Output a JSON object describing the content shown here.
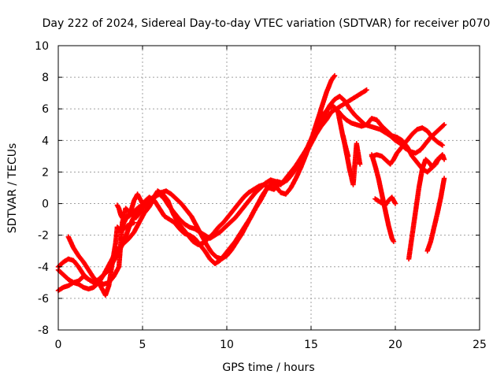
{
  "chart_data": {
    "type": "scatter",
    "title": "Day 222 of 2024, Sidereal Day-to-day VTEC variation (SDTVAR) for receiver p070",
    "xlabel": "GPS time / hours",
    "ylabel": "SDTVAR / TECUs",
    "xlim": [
      0,
      25
    ],
    "ylim": [
      -8,
      10
    ],
    "xticks": [
      0,
      5,
      10,
      15,
      20,
      25
    ],
    "yticks": [
      -8,
      -6,
      -4,
      -2,
      0,
      2,
      4,
      6,
      8,
      10
    ],
    "grid": true,
    "legend": "none",
    "marker": "plus",
    "color": "#ff0000",
    "series": [
      {
        "x": [
          0.0,
          0.3,
          0.6,
          0.9,
          1.2,
          1.5,
          1.8,
          2.1,
          2.4,
          2.6,
          2.8,
          3.0,
          3.2,
          3.4,
          3.5,
          3.7,
          3.9,
          4.1,
          4.3,
          4.5,
          4.7,
          5.0,
          5.3,
          5.6,
          5.9,
          6.2,
          6.5,
          6.8,
          7.1,
          7.4,
          7.7,
          8.0,
          8.3,
          8.6,
          8.9,
          9.2,
          9.5,
          9.8,
          10.1,
          10.4,
          10.7,
          11.0,
          11.3,
          11.6,
          11.9,
          12.2,
          12.5,
          12.8,
          13.1,
          13.4,
          13.7,
          14.0,
          14.3,
          14.6,
          14.9,
          15.2,
          15.5,
          15.8,
          16.1,
          16.4,
          16.7,
          17.0,
          17.3,
          17.6,
          17.9,
          18.2,
          18.5,
          18.8,
          19.1,
          19.4,
          19.7,
          20.0,
          20.3,
          20.6,
          20.9,
          21.2,
          21.5,
          21.8,
          22.1,
          22.4,
          22.7,
          22.9
        ],
        "y": [
          -5.5,
          -5.3,
          -5.2,
          -5.0,
          -4.9,
          -4.6,
          -4.8,
          -5.0,
          -5.0,
          -5.4,
          -5.8,
          -5.2,
          -3.8,
          -2.5,
          -1.5,
          -1.7,
          -1.2,
          -0.8,
          -0.5,
          0.2,
          0.6,
          0.0,
          -0.3,
          0.3,
          0.8,
          0.6,
          0.2,
          -0.6,
          -1.2,
          -1.6,
          -2.0,
          -2.4,
          -2.6,
          -2.5,
          -2.2,
          -1.9,
          -1.5,
          -1.2,
          -0.8,
          -0.4,
          0.0,
          0.4,
          0.7,
          0.9,
          1.1,
          1.2,
          1.0,
          0.9,
          1.2,
          1.4,
          1.7,
          2.1,
          2.5,
          3.0,
          3.6,
          4.2,
          4.9,
          5.6,
          6.2,
          6.6,
          6.8,
          6.5,
          6.0,
          5.6,
          5.3,
          5.0,
          4.9,
          4.8,
          4.7,
          4.5,
          4.3,
          4.0,
          3.8,
          3.5,
          3.3,
          3.2,
          3.4,
          3.8,
          4.2,
          4.5,
          4.8,
          5.0
        ]
      },
      {
        "x": [
          0.0,
          0.3,
          0.6,
          0.9,
          1.2,
          1.5,
          1.8,
          2.1,
          2.4,
          2.7,
          3.0,
          3.3,
          3.6,
          3.9,
          4.2,
          4.5,
          4.8,
          5.1,
          5.4,
          5.7,
          6.0,
          6.3,
          6.6,
          6.9,
          7.2,
          7.5,
          7.8,
          8.1,
          8.4,
          8.7,
          9.0,
          9.3,
          9.6,
          9.9,
          10.2,
          10.5,
          10.8,
          11.1,
          11.4,
          11.7,
          12.0,
          12.3,
          12.6,
          12.9,
          13.2,
          13.5,
          13.8,
          14.1,
          14.4,
          14.7,
          15.0,
          15.3,
          15.6,
          15.9,
          16.2,
          16.4
        ],
        "y": [
          -4.0,
          -3.7,
          -3.5,
          -3.6,
          -4.0,
          -4.5,
          -4.8,
          -5.0,
          -4.8,
          -4.5,
          -4.2,
          -3.6,
          -3.0,
          -2.4,
          -1.5,
          -0.8,
          -0.3,
          0.1,
          0.4,
          0.2,
          -0.3,
          -0.8,
          -1.0,
          -1.2,
          -1.6,
          -1.9,
          -2.0,
          -2.2,
          -2.6,
          -3.0,
          -3.5,
          -3.8,
          -3.6,
          -3.2,
          -2.8,
          -2.4,
          -1.9,
          -1.4,
          -0.9,
          -0.3,
          0.2,
          0.8,
          1.2,
          1.1,
          0.7,
          0.6,
          1.0,
          1.6,
          2.3,
          3.1,
          4.0,
          5.0,
          6.0,
          7.0,
          7.8,
          8.1
        ]
      },
      {
        "x": [
          0.0,
          0.3,
          0.6,
          0.9,
          1.2,
          1.5,
          1.8,
          2.1,
          2.4,
          2.7,
          3.0,
          3.3,
          3.6,
          3.9,
          4.2,
          4.5,
          4.8,
          5.1,
          5.4,
          5.7,
          6.0,
          6.3,
          6.6,
          6.9,
          7.2,
          7.5,
          7.8,
          8.1,
          8.4,
          8.7,
          9.0,
          9.3,
          9.6,
          9.9,
          10.2,
          10.5,
          10.8,
          11.1,
          11.4,
          11.7,
          12.0,
          12.3,
          12.6,
          12.9,
          13.2,
          13.5,
          13.8,
          14.1,
          14.4,
          14.7,
          15.0,
          15.3,
          15.6,
          15.9,
          16.2,
          16.5,
          16.8,
          17.1,
          17.4,
          17.7,
          18.0,
          18.3
        ],
        "y": [
          -4.2,
          -4.5,
          -4.8,
          -5.0,
          -5.1,
          -5.3,
          -5.4,
          -5.3,
          -5.0,
          -4.5,
          -3.9,
          -3.3,
          -2.8,
          -2.5,
          -2.2,
          -1.8,
          -1.2,
          -0.6,
          -0.2,
          0.4,
          0.6,
          0.3,
          -0.2,
          -0.6,
          -1.0,
          -1.3,
          -1.5,
          -1.6,
          -1.8,
          -2.0,
          -2.2,
          -2.0,
          -1.8,
          -1.5,
          -1.2,
          -0.9,
          -0.5,
          -0.1,
          0.3,
          0.7,
          1.0,
          1.3,
          1.5,
          1.4,
          1.2,
          1.6,
          2.0,
          2.4,
          2.9,
          3.4,
          3.9,
          4.4,
          4.9,
          5.3,
          5.8,
          6.0,
          6.2,
          6.4,
          6.6,
          6.8,
          7.0,
          7.2
        ]
      },
      {
        "x": [
          0.6,
          0.9,
          1.2,
          1.5,
          1.8,
          2.1,
          2.4,
          2.7,
          3.0,
          3.3,
          3.6,
          3.8,
          4.0,
          4.3,
          4.6,
          4.9,
          5.2,
          5.5,
          5.8,
          6.1,
          6.4,
          6.7,
          7.0,
          7.3,
          7.6,
          7.9,
          8.2,
          8.5,
          8.8,
          9.1,
          9.4,
          9.7,
          10.0,
          10.3,
          10.6,
          10.9,
          11.2,
          11.5,
          11.8,
          12.1,
          12.4,
          12.7,
          13.0,
          13.3,
          13.6,
          13.9,
          14.2,
          14.5,
          14.8,
          15.1,
          15.4,
          15.7,
          16.0,
          16.3,
          16.6,
          16.9,
          17.2
        ],
        "y": [
          -2.1,
          -2.8,
          -3.3,
          -3.7,
          -4.2,
          -4.7,
          -5.0,
          -5.1,
          -5.0,
          -4.6,
          -4.0,
          -1.2,
          -0.3,
          -0.6,
          -0.9,
          -0.5,
          0.0,
          0.3,
          0.5,
          0.7,
          0.8,
          0.6,
          0.3,
          0.0,
          -0.4,
          -0.8,
          -1.4,
          -2.0,
          -2.6,
          -3.1,
          -3.4,
          -3.5,
          -3.3,
          -2.9,
          -2.4,
          -1.9,
          -1.3,
          -0.7,
          -0.1,
          0.5,
          1.0,
          1.3,
          1.4,
          1.3,
          1.5,
          1.9,
          2.4,
          3.0,
          3.6,
          4.3,
          5.0,
          5.6,
          6.0,
          6.2,
          5.8,
          4.2,
          3.0
        ]
      },
      {
        "x": [
          16.5,
          16.8,
          17.1,
          17.4,
          17.7,
          18.0,
          18.3,
          18.6,
          18.9,
          19.2,
          19.5,
          19.8,
          20.1,
          20.4,
          20.7,
          21.0,
          21.3,
          21.6,
          21.9,
          22.2,
          22.5,
          22.8
        ],
        "y": [
          6.0,
          5.6,
          5.3,
          5.1,
          5.0,
          4.9,
          5.0,
          5.4,
          5.3,
          4.9,
          4.6,
          4.3,
          4.2,
          4.0,
          3.6,
          3.0,
          2.6,
          2.2,
          2.0,
          2.3,
          2.8,
          3.0
        ]
      },
      {
        "x": [
          18.6,
          18.9,
          19.2,
          19.5,
          19.7,
          19.9,
          20.1,
          20.4,
          20.7,
          21.0,
          21.3,
          21.6,
          21.9,
          22.2,
          22.5,
          22.8
        ],
        "y": [
          3.0,
          3.1,
          3.0,
          2.7,
          2.5,
          2.8,
          3.2,
          3.6,
          4.0,
          4.4,
          4.7,
          4.8,
          4.6,
          4.2,
          3.9,
          3.7
        ]
      },
      {
        "x": [
          16.9,
          17.1,
          17.3,
          17.5,
          17.7,
          17.9
        ],
        "y": [
          4.3,
          3.2,
          2.1,
          1.2,
          3.8,
          2.5
        ]
      },
      {
        "x": [
          18.6,
          18.8,
          19.0,
          19.2,
          19.4,
          19.6,
          19.8,
          19.9
        ],
        "y": [
          3.1,
          2.4,
          1.6,
          0.6,
          -0.4,
          -1.4,
          -2.2,
          -2.4
        ]
      },
      {
        "x": [
          18.8,
          19.1,
          19.4,
          19.6,
          19.8,
          20.0
        ],
        "y": [
          0.3,
          0.1,
          -0.1,
          0.2,
          0.4,
          0.0
        ]
      },
      {
        "x": [
          20.8,
          21.0,
          21.2,
          21.4,
          21.6,
          21.8,
          22.0,
          22.2,
          22.4,
          22.6,
          22.8,
          22.9
        ],
        "y": [
          -3.5,
          -2.0,
          -0.5,
          1.0,
          2.2,
          2.8,
          2.6,
          2.3,
          2.5,
          2.9,
          3.1,
          2.8
        ]
      },
      {
        "x": [
          21.9,
          22.1,
          22.3,
          22.5,
          22.7,
          22.9
        ],
        "y": [
          -3.0,
          -2.4,
          -1.5,
          -0.6,
          0.4,
          1.6
        ]
      },
      {
        "x": [
          3.5,
          3.7,
          3.9,
          4.1,
          4.3,
          4.5
        ],
        "y": [
          -1.5,
          -1.7,
          -1.6,
          -1.4,
          -1.3,
          -1.2
        ]
      },
      {
        "x": [
          3.5,
          3.6,
          3.7,
          3.8,
          3.9,
          4.0,
          4.2,
          4.4,
          4.6,
          4.8
        ],
        "y": [
          -0.1,
          -0.3,
          -0.7,
          -0.9,
          -0.8,
          -0.9,
          -0.8,
          -0.6,
          -0.4,
          -0.2
        ]
      }
    ]
  }
}
